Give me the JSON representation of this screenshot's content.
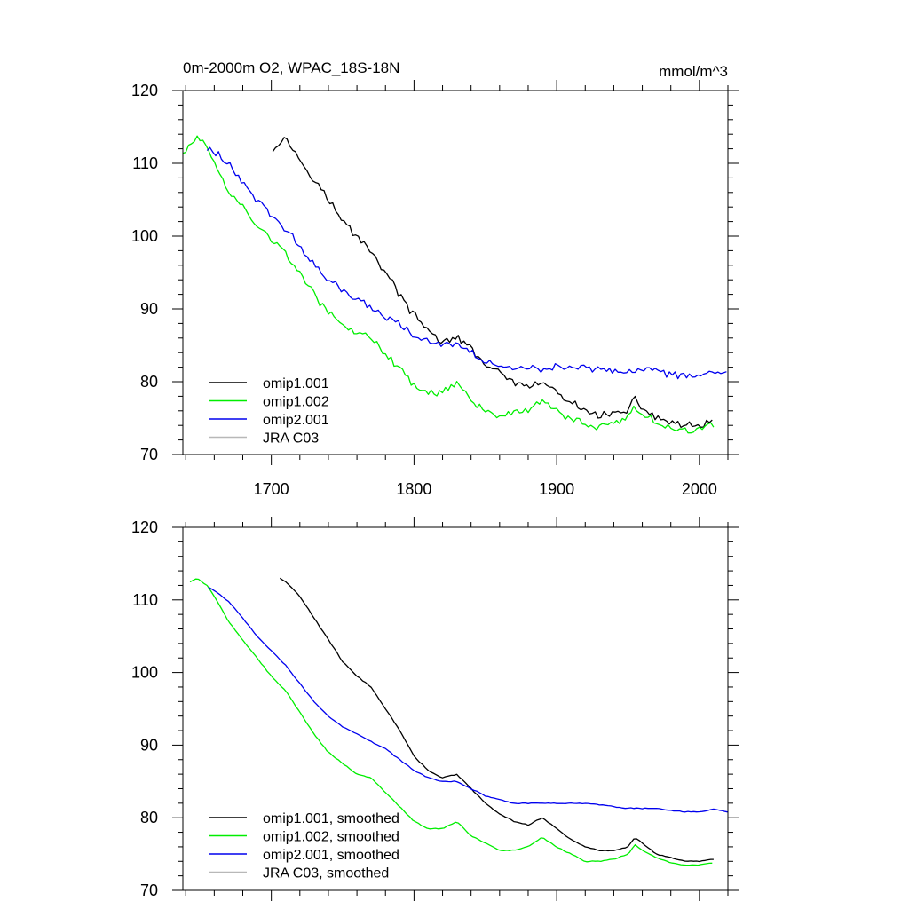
{
  "header": {
    "title": "0m-2000m O2, WPAC_18S-18N",
    "units": "mmol/m^3"
  },
  "colors": {
    "omip1_001": "#000000",
    "omip1_002": "#00ee00",
    "omip2_001": "#0000ee",
    "jra_c03": "#b8b8b8"
  },
  "chart_data": [
    {
      "type": "line",
      "title": "0m-2000m O2, WPAC_18S-18N",
      "units": "mmol/m^3",
      "xlim": [
        1638,
        2020
      ],
      "ylim": [
        70,
        120
      ],
      "xticks": [
        1700,
        1800,
        1900,
        2000
      ],
      "yticks": [
        70,
        80,
        90,
        100,
        110,
        120
      ],
      "xtick_labels": [
        "1700",
        "1800",
        "1900",
        "2000"
      ],
      "ytick_labels": [
        "70",
        "80",
        "90",
        "100",
        "110",
        "120"
      ],
      "grid": false,
      "legend_position": "bottom-left",
      "series": [
        {
          "name": "omip1.001",
          "color": "#000000",
          "noise": 0.45,
          "x": [
            1701,
            1705,
            1710,
            1720,
            1730,
            1740,
            1750,
            1760,
            1770,
            1780,
            1790,
            1800,
            1810,
            1820,
            1830,
            1840,
            1850,
            1860,
            1870,
            1880,
            1890,
            1900,
            1910,
            1920,
            1930,
            1940,
            1950,
            1955,
            1960,
            1970,
            1980,
            1990,
            2000,
            2010
          ],
          "y": [
            112,
            113,
            113.5,
            110.5,
            108,
            105,
            102,
            100,
            98,
            95,
            92,
            89,
            87,
            85.5,
            86,
            84.5,
            82.5,
            81,
            80,
            79,
            80,
            78.5,
            77,
            76,
            75.5,
            75.5,
            76,
            77.5,
            76.5,
            75,
            74.5,
            73.8,
            74,
            74.5
          ]
        },
        {
          "name": "omip1.002",
          "color": "#00ee00",
          "noise": 0.45,
          "x": [
            1638,
            1645,
            1650,
            1655,
            1660,
            1670,
            1680,
            1690,
            1700,
            1710,
            1720,
            1730,
            1740,
            1750,
            1760,
            1770,
            1780,
            1790,
            1800,
            1810,
            1820,
            1830,
            1840,
            1850,
            1860,
            1870,
            1880,
            1890,
            1900,
            1910,
            1920,
            1930,
            1940,
            1950,
            1955,
            1960,
            1970,
            1980,
            1990,
            2000,
            2010
          ],
          "y": [
            111.5,
            113,
            113.2,
            112,
            110.5,
            106,
            104,
            101.5,
            99.5,
            97.5,
            95,
            92,
            89.5,
            88,
            86.5,
            86,
            83.5,
            82,
            79.5,
            78.5,
            78.5,
            80,
            77.5,
            76,
            75.5,
            75.5,
            76,
            77.5,
            76,
            75,
            74,
            74,
            74.5,
            75,
            76.5,
            75.5,
            74.5,
            73.5,
            73.3,
            73.5,
            74
          ]
        },
        {
          "name": "omip2.001",
          "color": "#0000ee",
          "noise": 0.4,
          "x": [
            1655,
            1660,
            1670,
            1680,
            1690,
            1700,
            1710,
            1720,
            1730,
            1740,
            1750,
            1760,
            1770,
            1780,
            1790,
            1800,
            1810,
            1820,
            1830,
            1840,
            1850,
            1860,
            1870,
            1880,
            1890,
            1900,
            1910,
            1920,
            1930,
            1940,
            1950,
            1960,
            1970,
            1980,
            1990,
            2000,
            2010,
            2020
          ],
          "y": [
            112,
            111.5,
            110,
            107.5,
            105,
            103,
            101,
            98.5,
            96,
            94,
            92.5,
            91.5,
            90,
            89,
            88,
            86.5,
            85.5,
            85,
            85,
            84,
            83,
            82.5,
            82,
            82,
            81.5,
            82,
            82,
            82,
            81.8,
            81.5,
            81.3,
            81.5,
            81.5,
            81,
            80.8,
            80.8,
            81.3,
            81
          ]
        },
        {
          "name": "JRA C03",
          "color": "#b8b8b8",
          "x": [],
          "y": []
        }
      ]
    },
    {
      "type": "line",
      "xlim": [
        1638,
        2020
      ],
      "ylim": [
        70,
        120
      ],
      "xticks": [
        1700,
        1800,
        1900,
        2000
      ],
      "yticks": [
        70,
        80,
        90,
        100,
        110,
        120
      ],
      "ytick_labels": [
        "70",
        "80",
        "90",
        "100",
        "110",
        "120"
      ],
      "grid": false,
      "legend_position": "bottom-left",
      "series": [
        {
          "name": "omip1.001, smoothed",
          "color": "#000000",
          "noise": 0.05,
          "x": [
            1706,
            1710,
            1720,
            1730,
            1740,
            1750,
            1760,
            1770,
            1780,
            1790,
            1800,
            1810,
            1820,
            1830,
            1840,
            1850,
            1860,
            1870,
            1880,
            1890,
            1900,
            1910,
            1920,
            1930,
            1940,
            1950,
            1955,
            1960,
            1970,
            1980,
            1990,
            2000,
            2010
          ],
          "y": [
            113,
            112.5,
            110.5,
            107.5,
            104.5,
            101.5,
            99.5,
            98,
            95,
            92,
            88.5,
            86.5,
            85.5,
            86,
            84,
            82,
            80.5,
            79.5,
            79,
            80,
            78.5,
            77,
            76,
            75.5,
            75.5,
            76,
            77.3,
            76.5,
            75,
            74.5,
            74,
            74,
            74.3
          ]
        },
        {
          "name": "omip1.002, smoothed",
          "color": "#00ee00",
          "noise": 0.05,
          "x": [
            1643,
            1648,
            1655,
            1660,
            1670,
            1680,
            1690,
            1700,
            1710,
            1720,
            1730,
            1740,
            1750,
            1760,
            1770,
            1780,
            1790,
            1800,
            1810,
            1820,
            1830,
            1840,
            1850,
            1860,
            1870,
            1880,
            1890,
            1900,
            1910,
            1920,
            1930,
            1940,
            1950,
            1955,
            1960,
            1970,
            1980,
            1990,
            2000,
            2010
          ],
          "y": [
            112.5,
            113,
            112,
            110.5,
            107,
            104.5,
            102,
            99.5,
            97.5,
            94.5,
            91.5,
            89,
            87.5,
            86,
            85.5,
            83.5,
            81.5,
            79.5,
            78.5,
            78.5,
            79.5,
            77.5,
            76.5,
            75.5,
            75.5,
            76,
            77.3,
            76,
            75,
            74,
            74,
            74.3,
            75,
            76.3,
            75.5,
            74.5,
            73.8,
            73.5,
            73.5,
            73.8
          ]
        },
        {
          "name": "omip2.001, smoothed",
          "color": "#0000ee",
          "noise": 0.05,
          "x": [
            1656,
            1660,
            1670,
            1680,
            1690,
            1700,
            1710,
            1720,
            1730,
            1740,
            1750,
            1760,
            1770,
            1780,
            1790,
            1800,
            1810,
            1820,
            1830,
            1840,
            1850,
            1860,
            1870,
            1880,
            1890,
            1900,
            1910,
            1920,
            1930,
            1940,
            1950,
            1960,
            1970,
            1980,
            1990,
            2000,
            2010,
            2020
          ],
          "y": [
            111.8,
            111.3,
            109.8,
            107.5,
            105,
            103,
            101,
            98.5,
            96,
            94,
            92.5,
            91.5,
            90.5,
            89.5,
            88,
            86.5,
            85.5,
            85,
            85,
            84,
            83,
            82.5,
            82,
            82,
            82,
            82,
            82,
            82,
            81.8,
            81.5,
            81.3,
            81.3,
            81.3,
            81,
            80.8,
            80.8,
            81.2,
            80.8
          ]
        },
        {
          "name": "JRA C03, smoothed",
          "color": "#b8b8b8",
          "x": [],
          "y": []
        }
      ]
    }
  ]
}
